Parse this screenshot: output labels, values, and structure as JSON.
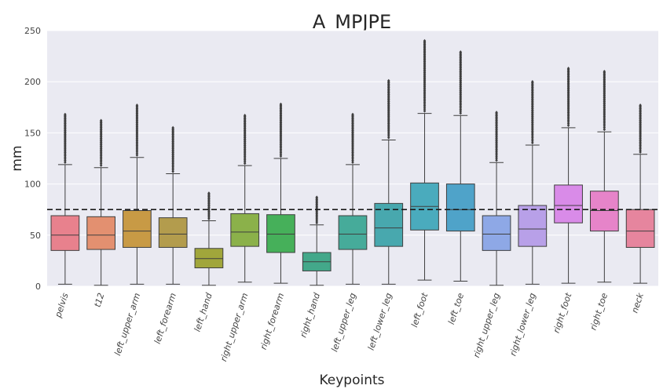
{
  "chart_data": {
    "type": "box",
    "title": "A_MPJPE",
    "xlabel": "Keypoints",
    "ylabel": "mm",
    "ylim": [
      0,
      250
    ],
    "yticks": [
      0,
      50,
      100,
      150,
      200,
      250
    ],
    "grid": true,
    "mean_line": 75,
    "categories": [
      "pelvis",
      "t12",
      "left_upper_arm",
      "left_forearm",
      "left_hand",
      "right_upper_arm",
      "right_forearm",
      "right_hand",
      "left_upper_leg",
      "left_lower_leg",
      "left_foot",
      "left_toe",
      "right_upper_leg",
      "right_lower_leg",
      "right_foot",
      "right_toe",
      "neck"
    ],
    "boxes": [
      {
        "name": "pelvis",
        "color": "#e8818d",
        "min": 2,
        "q1": 35,
        "median": 50,
        "q3": 69,
        "whisker_high": 119,
        "outlier_max": 168
      },
      {
        "name": "t12",
        "color": "#e39070",
        "min": 1,
        "q1": 36,
        "median": 50,
        "q3": 68,
        "whisker_high": 116,
        "outlier_max": 162
      },
      {
        "name": "left_upper_arm",
        "color": "#c89a45",
        "min": 2,
        "q1": 38,
        "median": 54,
        "q3": 74,
        "whisker_high": 126,
        "outlier_max": 177
      },
      {
        "name": "left_forearm",
        "color": "#b39c4d",
        "min": 2,
        "q1": 38,
        "median": 51,
        "q3": 67,
        "whisker_high": 110,
        "outlier_max": 155
      },
      {
        "name": "left_hand",
        "color": "#a1a63b",
        "min": 1,
        "q1": 18,
        "median": 27,
        "q3": 37,
        "whisker_high": 64,
        "outlier_max": 91
      },
      {
        "name": "right_upper_arm",
        "color": "#8bb14a",
        "min": 4,
        "q1": 39,
        "median": 53,
        "q3": 71,
        "whisker_high": 118,
        "outlier_max": 167
      },
      {
        "name": "right_forearm",
        "color": "#46b05a",
        "min": 3,
        "q1": 33,
        "median": 51,
        "q3": 70,
        "whisker_high": 125,
        "outlier_max": 178
      },
      {
        "name": "right_hand",
        "color": "#43a88a",
        "min": 1,
        "q1": 15,
        "median": 24,
        "q3": 33,
        "whisker_high": 60,
        "outlier_max": 87
      },
      {
        "name": "left_upper_leg",
        "color": "#46ab9a",
        "min": 2,
        "q1": 36,
        "median": 51,
        "q3": 69,
        "whisker_high": 119,
        "outlier_max": 168
      },
      {
        "name": "left_lower_leg",
        "color": "#48a8ae",
        "min": 2,
        "q1": 39,
        "median": 57,
        "q3": 81,
        "whisker_high": 143,
        "outlier_max": 201
      },
      {
        "name": "left_foot",
        "color": "#4aabbd",
        "min": 6,
        "q1": 55,
        "median": 78,
        "q3": 101,
        "whisker_high": 169,
        "outlier_max": 240
      },
      {
        "name": "left_toe",
        "color": "#4fa3c9",
        "min": 5,
        "q1": 54,
        "median": 75,
        "q3": 100,
        "whisker_high": 167,
        "outlier_max": 229
      },
      {
        "name": "right_upper_leg",
        "color": "#8ea8e6",
        "min": 1,
        "q1": 35,
        "median": 51,
        "q3": 69,
        "whisker_high": 121,
        "outlier_max": 170
      },
      {
        "name": "right_lower_leg",
        "color": "#b8a0e8",
        "min": 2,
        "q1": 39,
        "median": 56,
        "q3": 79,
        "whisker_high": 138,
        "outlier_max": 200
      },
      {
        "name": "right_foot",
        "color": "#d98be8",
        "min": 3,
        "q1": 62,
        "median": 79,
        "q3": 99,
        "whisker_high": 155,
        "outlier_max": 213
      },
      {
        "name": "right_toe",
        "color": "#e684c9",
        "min": 4,
        "q1": 54,
        "median": 74,
        "q3": 93,
        "whisker_high": 151,
        "outlier_max": 210
      },
      {
        "name": "neck",
        "color": "#e6859e",
        "min": 3,
        "q1": 38,
        "median": 54,
        "q3": 75,
        "whisker_high": 129,
        "outlier_max": 177
      }
    ]
  }
}
